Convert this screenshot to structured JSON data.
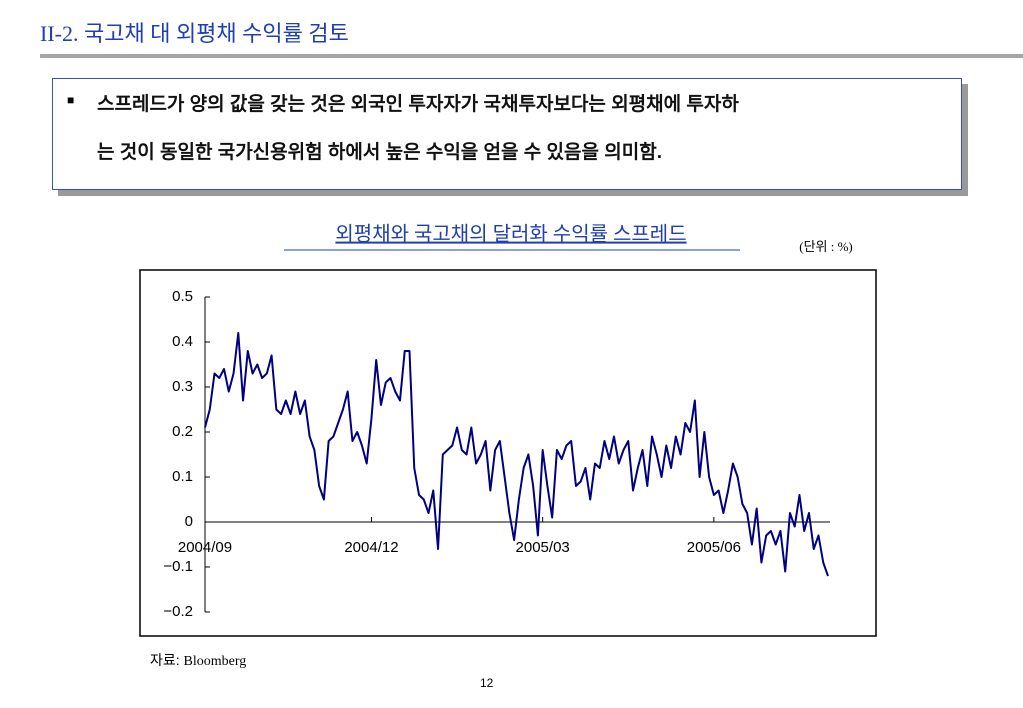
{
  "header": {
    "title": "II-2. 국고채 대 외평채 수익률 검토"
  },
  "bullet": {
    "lines": [
      "스프레드가 양의 값을 갖는 것은 외국인 투자자가 국채투자보다는 외평채에 투자하",
      "는 것이 동일한 국가신용위험 하에서 높은 수익을 얻을 수 있음을 의미함."
    ]
  },
  "chart_data": {
    "type": "line",
    "title": "외평채와 국고채의 달러화 수익률 스프레드",
    "unit_note": "(단위 : %)",
    "color": "#000080",
    "categories": [
      "2004/09",
      null,
      null,
      null,
      null,
      null,
      null,
      null,
      null,
      null,
      null,
      null,
      null,
      null,
      null,
      null,
      null,
      null,
      null,
      null,
      null,
      null,
      null,
      null,
      null,
      null,
      null,
      null,
      null,
      null,
      null,
      null,
      null,
      null,
      null,
      "2004/12",
      null,
      null,
      null,
      null,
      null,
      null,
      null,
      null,
      null,
      null,
      null,
      null,
      null,
      null,
      null,
      null,
      null,
      null,
      null,
      null,
      null,
      null,
      null,
      null,
      null,
      null,
      null,
      null,
      null,
      null,
      null,
      null,
      null,
      null,
      null,
      "2005/03",
      null,
      null,
      null,
      null,
      null,
      null,
      null,
      null,
      null,
      null,
      null,
      null,
      null,
      null,
      null,
      null,
      null,
      null,
      null,
      null,
      null,
      null,
      null,
      null,
      null,
      null,
      null,
      null,
      null,
      null,
      null,
      null,
      null,
      null,
      null,
      "2005/06",
      null,
      null,
      null,
      null,
      null,
      null,
      null,
      null,
      null,
      null,
      null,
      null,
      null,
      null,
      null,
      null,
      null,
      null,
      null,
      null,
      null,
      null,
      null,
      null
    ],
    "values": [
      0.21,
      0.25,
      0.33,
      0.32,
      0.34,
      0.29,
      0.33,
      0.42,
      0.27,
      0.38,
      0.33,
      0.35,
      0.32,
      0.33,
      0.37,
      0.25,
      0.24,
      0.27,
      0.24,
      0.29,
      0.24,
      0.27,
      0.19,
      0.16,
      0.08,
      0.05,
      0.18,
      0.19,
      0.22,
      0.25,
      0.29,
      0.18,
      0.2,
      0.17,
      0.13,
      0.23,
      0.36,
      0.26,
      0.31,
      0.32,
      0.29,
      0.27,
      0.38,
      0.38,
      0.12,
      0.06,
      0.05,
      0.02,
      0.07,
      -0.06,
      0.15,
      0.16,
      0.17,
      0.21,
      0.16,
      0.15,
      0.21,
      0.13,
      0.15,
      0.18,
      0.07,
      0.16,
      0.18,
      0.1,
      0.02,
      -0.04,
      0.05,
      0.12,
      0.15,
      0.08,
      -0.03,
      0.16,
      0.08,
      0.01,
      0.16,
      0.14,
      0.17,
      0.18,
      0.08,
      0.09,
      0.12,
      0.05,
      0.13,
      0.12,
      0.18,
      0.14,
      0.19,
      0.13,
      0.16,
      0.18,
      0.07,
      0.12,
      0.16,
      0.08,
      0.19,
      0.15,
      0.1,
      0.17,
      0.12,
      0.19,
      0.15,
      0.22,
      0.2,
      0.27,
      0.1,
      0.2,
      0.1,
      0.06,
      0.07,
      0.02,
      0.07,
      0.13,
      0.1,
      0.04,
      0.02,
      -0.05,
      0.03,
      -0.09,
      -0.03,
      -0.02,
      -0.05,
      -0.02,
      -0.11,
      0.02,
      -0.01,
      0.06,
      -0.02,
      0.02,
      -0.06,
      -0.03,
      -0.09,
      -0.12
    ],
    "ylim": [
      -0.2,
      0.5
    ],
    "yticks": [
      0.5,
      0.4,
      0.3,
      0.2,
      0.1,
      0,
      {
        "value": -0.1,
        "label": "−0.1"
      },
      {
        "value": -0.2,
        "label": "−0.2"
      }
    ],
    "grid": false
  },
  "source": {
    "label": "자료:",
    "name": "Bloomberg"
  },
  "page_number": "12"
}
